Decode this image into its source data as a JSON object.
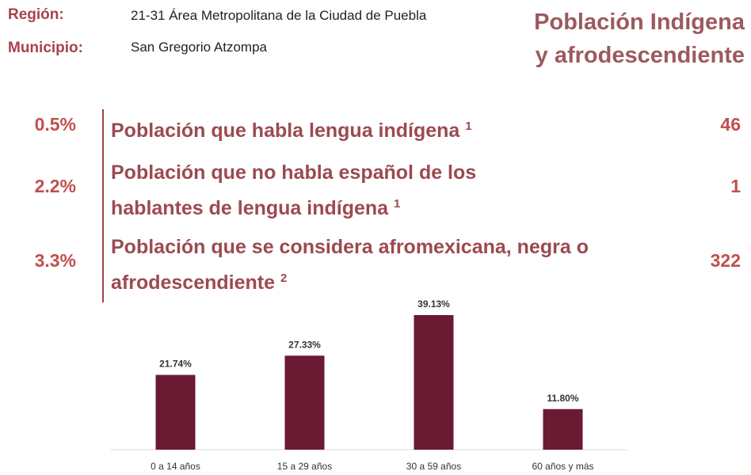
{
  "header": {
    "region_label": "Región:",
    "region_value": "21-31 Área Metropolitana de la Ciudad de Puebla",
    "municipio_label": "Municipio:",
    "municipio_value": "San Gregorio Atzompa",
    "title_lines": [
      "Población Indígena",
      "y afrodescendiente"
    ]
  },
  "indicators": [
    {
      "percent": "0.5%",
      "lines": [
        "Población que habla lengua indígena"
      ],
      "note": "1",
      "count": "46"
    },
    {
      "percent": "2.2%",
      "lines": [
        "Población que no habla español de los",
        "hablantes de lengua indígena"
      ],
      "note": "1",
      "count": "1"
    },
    {
      "percent": "3.3%",
      "lines": [
        "Población que se considera afromexicana, negra o",
        "afrodescendiente"
      ],
      "note": "2",
      "count": "322"
    }
  ],
  "chart_data": {
    "type": "bar",
    "categories": [
      "0 a 14 años",
      "15 a 29 años",
      "30 a 59 años",
      "60 años y más"
    ],
    "values": [
      21.74,
      27.33,
      39.13,
      11.8
    ],
    "value_labels": [
      "21.74%",
      "27.33%",
      "39.13%",
      "11.80%"
    ],
    "color": "#6b1a33"
  }
}
